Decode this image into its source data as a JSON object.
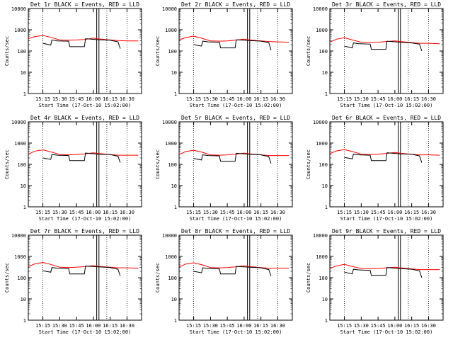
{
  "chart_data": [
    {
      "type": "line",
      "title": "Det 1r BLACK = Events, RED = LLD",
      "xlabel": "Start Time (17-Oct-10 15:02:00)",
      "ylabel": "Counts/sec",
      "log_y": true,
      "ylim": [
        1,
        10000
      ],
      "yticks": [
        "1",
        "10",
        "100",
        "1000",
        "10000"
      ],
      "xticks": [
        "15:15",
        "15:30",
        "15:45",
        "16:00",
        "16:15",
        "16:30"
      ],
      "xlim": [
        "15:02",
        "16:43"
      ],
      "dotted_lines_x": [
        "15:15",
        "16:12",
        "16:30"
      ],
      "solid_lines_x": [
        "16:03",
        "16:05"
      ],
      "series": [
        {
          "color": "#ff0000",
          "x": [
            "15:02",
            "15:08",
            "15:15",
            "15:22",
            "15:30",
            "15:38",
            "15:45",
            "15:52",
            "16:00",
            "16:05",
            "16:15",
            "16:22",
            "16:30",
            "16:40"
          ],
          "values": [
            380,
            480,
            540,
            440,
            330,
            320,
            330,
            350,
            400,
            370,
            330,
            310,
            300,
            300
          ]
        },
        {
          "color": "#000000",
          "x": [
            "15:15",
            "15:22",
            "15:23",
            "15:28",
            "15:38",
            "15:39",
            "15:52",
            "15:53",
            "16:05",
            "16:15",
            "16:22",
            "16:24"
          ],
          "values": [
            230,
            190,
            330,
            300,
            290,
            160,
            160,
            380,
            340,
            320,
            270,
            130
          ]
        }
      ]
    },
    {
      "type": "line",
      "title": "Det 2r BLACK = Events, RED = LLD",
      "xlabel": "Start Time (17-Oct-10 15:02:00)",
      "ylabel": "Counts/sec",
      "log_y": true,
      "ylim": [
        1,
        10000
      ],
      "yticks": [
        "1",
        "10",
        "100",
        "1000",
        "10000"
      ],
      "xticks": [
        "15:15",
        "15:30",
        "15:45",
        "16:00",
        "16:15",
        "16:30"
      ],
      "xlim": [
        "15:02",
        "16:43"
      ],
      "dotted_lines_x": [
        "15:15",
        "16:12",
        "16:30"
      ],
      "solid_lines_x": [
        "16:03",
        "16:05"
      ],
      "series": [
        {
          "color": "#ff0000",
          "x": [
            "15:02",
            "15:08",
            "15:15",
            "15:22",
            "15:30",
            "15:38",
            "15:45",
            "15:52",
            "16:00",
            "16:05",
            "16:15",
            "16:22",
            "16:30",
            "16:40"
          ],
          "values": [
            330,
            430,
            500,
            400,
            300,
            290,
            300,
            320,
            360,
            330,
            300,
            280,
            270,
            260
          ]
        },
        {
          "color": "#000000",
          "x": [
            "15:15",
            "15:22",
            "15:23",
            "15:28",
            "15:38",
            "15:39",
            "15:52",
            "15:53",
            "16:05",
            "16:15",
            "16:22",
            "16:24"
          ],
          "values": [
            200,
            170,
            290,
            270,
            260,
            140,
            140,
            340,
            310,
            290,
            250,
            110
          ]
        }
      ]
    },
    {
      "type": "line",
      "title": "Det 3r BLACK = Events, RED = LLD",
      "xlabel": "Start Time (17-Oct-10 15:02:00)",
      "ylabel": "Counts/sec",
      "log_y": true,
      "ylim": [
        1,
        10000
      ],
      "yticks": [
        "1",
        "10",
        "100",
        "1000",
        "10000"
      ],
      "xticks": [
        "15:15",
        "15:30",
        "15:45",
        "16:00",
        "16:15",
        "16:30"
      ],
      "xlim": [
        "15:02",
        "16:43"
      ],
      "dotted_lines_x": [
        "15:15",
        "16:12",
        "16:30"
      ],
      "solid_lines_x": [
        "16:03",
        "16:05"
      ],
      "series": [
        {
          "color": "#ff0000",
          "x": [
            "15:02",
            "15:08",
            "15:15",
            "15:22",
            "15:30",
            "15:38",
            "15:45",
            "15:52",
            "16:00",
            "16:05",
            "16:15",
            "16:22",
            "16:30",
            "16:40"
          ],
          "values": [
            260,
            360,
            420,
            330,
            260,
            250,
            260,
            280,
            300,
            280,
            250,
            230,
            230,
            220
          ]
        },
        {
          "color": "#000000",
          "x": [
            "15:15",
            "15:22",
            "15:23",
            "15:28",
            "15:38",
            "15:39",
            "15:52",
            "15:53",
            "16:05",
            "16:15",
            "16:22",
            "16:24"
          ],
          "values": [
            170,
            140,
            240,
            220,
            210,
            120,
            120,
            290,
            260,
            240,
            210,
            100
          ]
        }
      ]
    },
    {
      "type": "line",
      "title": "Det 4r BLACK = Events, RED = LLD",
      "xlabel": "Start Time (17-Oct-10 15:02:00)",
      "ylabel": "Counts/sec",
      "log_y": true,
      "ylim": [
        1,
        10000
      ],
      "yticks": [
        "1",
        "10",
        "100",
        "1000",
        "10000"
      ],
      "xticks": [
        "15:15",
        "15:30",
        "15:45",
        "16:00",
        "16:15",
        "16:30"
      ],
      "xlim": [
        "15:02",
        "16:43"
      ],
      "dotted_lines_x": [
        "15:15",
        "16:12",
        "16:30"
      ],
      "solid_lines_x": [
        "16:03",
        "16:05"
      ],
      "series": [
        {
          "color": "#ff0000",
          "x": [
            "15:02",
            "15:08",
            "15:15",
            "15:22",
            "15:30",
            "15:38",
            "15:45",
            "15:52",
            "16:00",
            "16:05",
            "16:15",
            "16:22",
            "16:30",
            "16:40"
          ],
          "values": [
            300,
            420,
            480,
            390,
            290,
            280,
            290,
            310,
            350,
            320,
            290,
            270,
            270,
            270
          ]
        },
        {
          "color": "#000000",
          "x": [
            "15:15",
            "15:22",
            "15:23",
            "15:28",
            "15:38",
            "15:39",
            "15:52",
            "15:53",
            "16:05",
            "16:15",
            "16:22",
            "16:24"
          ],
          "values": [
            200,
            170,
            290,
            270,
            260,
            150,
            150,
            340,
            300,
            290,
            240,
            120
          ]
        }
      ]
    },
    {
      "type": "line",
      "title": "Det 5r BLACK = Events, RED = LLD",
      "xlabel": "Start Time (17-Oct-10 15:02:00)",
      "ylabel": "Counts/sec",
      "log_y": true,
      "ylim": [
        1,
        10000
      ],
      "yticks": [
        "1",
        "10",
        "100",
        "1000",
        "10000"
      ],
      "xticks": [
        "15:15",
        "15:30",
        "15:45",
        "16:00",
        "16:15",
        "16:30"
      ],
      "xlim": [
        "15:02",
        "16:43"
      ],
      "dotted_lines_x": [
        "15:15",
        "16:12",
        "16:30"
      ],
      "solid_lines_x": [
        "16:03",
        "16:05"
      ],
      "series": [
        {
          "color": "#ff0000",
          "x": [
            "15:02",
            "15:08",
            "15:15",
            "15:22",
            "15:30",
            "15:38",
            "15:45",
            "15:52",
            "16:00",
            "16:05",
            "16:15",
            "16:22",
            "16:30",
            "16:40"
          ],
          "values": [
            290,
            400,
            460,
            380,
            280,
            270,
            280,
            300,
            340,
            310,
            280,
            260,
            260,
            260
          ]
        },
        {
          "color": "#000000",
          "x": [
            "15:15",
            "15:22",
            "15:23",
            "15:28",
            "15:38",
            "15:39",
            "15:52",
            "15:53",
            "16:05",
            "16:15",
            "16:22",
            "16:24"
          ],
          "values": [
            190,
            160,
            280,
            260,
            250,
            140,
            140,
            330,
            300,
            280,
            230,
            110
          ]
        }
      ]
    },
    {
      "type": "line",
      "title": "Det 6r BLACK = Events, RED = LLD",
      "xlabel": "Start Time (17-Oct-10 15:02:00)",
      "ylabel": "Counts/sec",
      "log_y": true,
      "ylim": [
        1,
        10000
      ],
      "yticks": [
        "1",
        "10",
        "100",
        "1000",
        "10000"
      ],
      "xticks": [
        "15:15",
        "15:30",
        "15:45",
        "16:00",
        "16:15",
        "16:30"
      ],
      "xlim": [
        "15:02",
        "16:43"
      ],
      "dotted_lines_x": [
        "15:15",
        "16:12",
        "16:30"
      ],
      "solid_lines_x": [
        "16:03",
        "16:05"
      ],
      "series": [
        {
          "color": "#ff0000",
          "x": [
            "15:02",
            "15:08",
            "15:15",
            "15:22",
            "15:30",
            "15:38",
            "15:45",
            "15:52",
            "16:00",
            "16:05",
            "16:15",
            "16:22",
            "16:30",
            "16:40"
          ],
          "values": [
            320,
            430,
            490,
            400,
            300,
            290,
            300,
            320,
            360,
            330,
            300,
            280,
            280,
            270
          ]
        },
        {
          "color": "#000000",
          "x": [
            "15:15",
            "15:22",
            "15:23",
            "15:28",
            "15:38",
            "15:39",
            "15:52",
            "15:53",
            "16:05",
            "16:15",
            "16:22",
            "16:24"
          ],
          "values": [
            210,
            180,
            300,
            280,
            270,
            150,
            150,
            350,
            310,
            300,
            250,
            120
          ]
        }
      ]
    },
    {
      "type": "line",
      "title": "Det 7r BLACK = Events, RED = LLD",
      "xlabel": "Start Time (17-Oct-10 15:02:00)",
      "ylabel": "Counts/sec",
      "log_y": true,
      "ylim": [
        1,
        10000
      ],
      "yticks": [
        "1",
        "10",
        "100",
        "1000",
        "10000"
      ],
      "xticks": [
        "15:15",
        "15:30",
        "15:45",
        "16:00",
        "16:15",
        "16:30"
      ],
      "xlim": [
        "15:02",
        "16:43"
      ],
      "dotted_lines_x": [
        "15:15",
        "16:12",
        "16:30"
      ],
      "solid_lines_x": [
        "16:03",
        "16:05"
      ],
      "series": [
        {
          "color": "#ff0000",
          "x": [
            "15:02",
            "15:08",
            "15:15",
            "15:22",
            "15:30",
            "15:38",
            "15:45",
            "15:52",
            "16:00",
            "16:05",
            "16:15",
            "16:22",
            "16:30",
            "16:40"
          ],
          "values": [
            330,
            450,
            520,
            420,
            310,
            300,
            310,
            330,
            370,
            340,
            310,
            290,
            290,
            280
          ]
        },
        {
          "color": "#000000",
          "x": [
            "15:15",
            "15:22",
            "15:23",
            "15:28",
            "15:38",
            "15:39",
            "15:52",
            "15:53",
            "16:05",
            "16:15",
            "16:22",
            "16:24"
          ],
          "values": [
            210,
            180,
            300,
            280,
            270,
            150,
            150,
            350,
            320,
            300,
            250,
            120
          ]
        }
      ]
    },
    {
      "type": "line",
      "title": "Det 8r BLACK = Events, RED = LLD",
      "xlabel": "Start Time (17-Oct-10 15:02:00)",
      "ylabel": "Counts/sec",
      "log_y": true,
      "ylim": [
        1,
        10000
      ],
      "yticks": [
        "1",
        "10",
        "100",
        "1000",
        "10000"
      ],
      "xticks": [
        "15:15",
        "15:30",
        "15:45",
        "16:00",
        "16:15",
        "16:30"
      ],
      "xlim": [
        "15:02",
        "16:43"
      ],
      "dotted_lines_x": [
        "15:15",
        "16:12",
        "16:30"
      ],
      "solid_lines_x": [
        "16:03",
        "16:05"
      ],
      "series": [
        {
          "color": "#ff0000",
          "x": [
            "15:02",
            "15:08",
            "15:15",
            "15:22",
            "15:30",
            "15:38",
            "15:45",
            "15:52",
            "16:00",
            "16:05",
            "16:15",
            "16:22",
            "16:30",
            "16:40"
          ],
          "values": [
            320,
            440,
            500,
            410,
            300,
            290,
            300,
            320,
            360,
            330,
            300,
            280,
            280,
            280
          ]
        },
        {
          "color": "#000000",
          "x": [
            "15:15",
            "15:22",
            "15:23",
            "15:28",
            "15:38",
            "15:39",
            "15:52",
            "15:53",
            "16:05",
            "16:15",
            "16:22",
            "16:24"
          ],
          "values": [
            200,
            170,
            290,
            270,
            260,
            150,
            150,
            340,
            310,
            290,
            240,
            120
          ]
        }
      ]
    },
    {
      "type": "line",
      "title": "Det 9r BLACK = Events, RED = LLD",
      "xlabel": "Start Time (17-Oct-10 15:02:00)",
      "ylabel": "Counts/sec",
      "log_y": true,
      "ylim": [
        1,
        10000
      ],
      "yticks": [
        "1",
        "10",
        "100",
        "1000",
        "10000"
      ],
      "xticks": [
        "15:15",
        "15:30",
        "15:45",
        "16:00",
        "16:15",
        "16:30"
      ],
      "xlim": [
        "15:02",
        "16:43"
      ],
      "dotted_lines_x": [
        "15:15",
        "16:12",
        "16:30"
      ],
      "solid_lines_x": [
        "16:03",
        "16:05"
      ],
      "series": [
        {
          "color": "#ff0000",
          "x": [
            "15:02",
            "15:08",
            "15:15",
            "15:22",
            "15:30",
            "15:38",
            "15:45",
            "15:52",
            "16:00",
            "16:05",
            "16:15",
            "16:22",
            "16:30",
            "16:40"
          ],
          "values": [
            270,
            360,
            420,
            340,
            270,
            260,
            270,
            290,
            310,
            290,
            260,
            240,
            240,
            240
          ]
        },
        {
          "color": "#000000",
          "x": [
            "15:15",
            "15:22",
            "15:23",
            "15:28",
            "15:38",
            "15:39",
            "15:52",
            "15:53",
            "16:05",
            "16:15",
            "16:22",
            "16:24"
          ],
          "values": [
            180,
            150,
            250,
            230,
            220,
            130,
            130,
            300,
            270,
            250,
            210,
            100
          ]
        }
      ]
    }
  ]
}
